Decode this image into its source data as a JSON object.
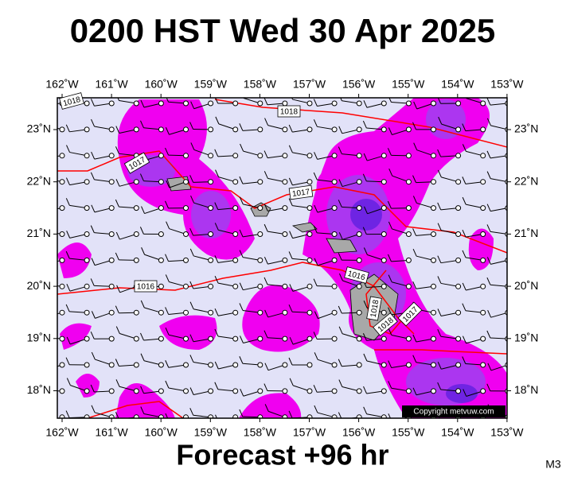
{
  "header": {
    "title": "0200 HST Wed 30 Apr 2025"
  },
  "map": {
    "lon_labels": [
      "162˚W",
      "161˚W",
      "160˚W",
      "159˚W",
      "158˚W",
      "157˚W",
      "156˚W",
      "155˚W",
      "154˚W",
      "153˚W"
    ],
    "lat_labels": [
      "23˚N",
      "22˚N",
      "21˚N",
      "20˚N",
      "19˚N",
      "18˚N"
    ],
    "isobar_labels": [
      "1018",
      "1017",
      "1017",
      "1016",
      "1016",
      "1018",
      "1017",
      "1018",
      "1018"
    ],
    "copyright": "Copyright metvuw.com"
  },
  "footer": {
    "forecast": "Forecast +96 hr",
    "model": "M3"
  }
}
